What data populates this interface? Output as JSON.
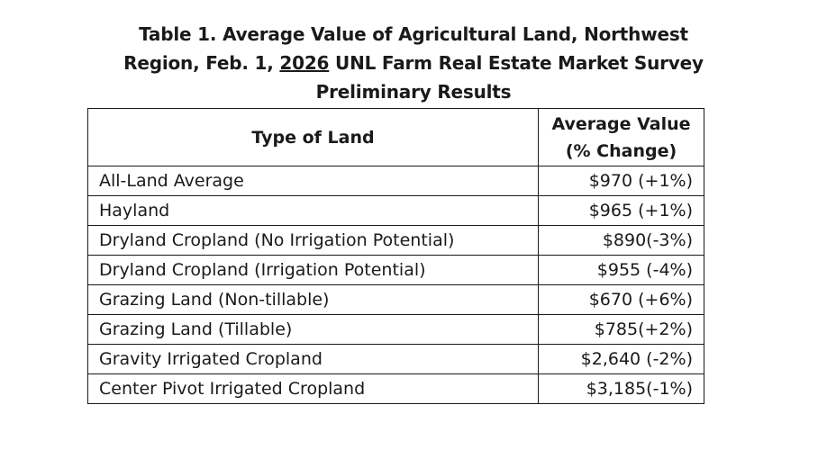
{
  "title": {
    "line1": "Table 1. Average Value of Agricultural Land, Northwest",
    "line2_pre": "Region, Feb. 1, ",
    "line2_year": "2026",
    "line2_post": " UNL Farm Real Estate Market Survey",
    "line3": "Preliminary Results"
  },
  "table": {
    "headers": {
      "type": "Type of Land",
      "value_line1": "Average Value",
      "value_line2": "(% Change)"
    },
    "rows": [
      {
        "type": "All-Land Average",
        "value": "$970 (+1%)"
      },
      {
        "type": "Hayland",
        "value": "$965 (+1%)"
      },
      {
        "type": "Dryland Cropland (No Irrigation Potential)",
        "value": "$890(-3%)"
      },
      {
        "type": "Dryland Cropland (Irrigation Potential)",
        "value": "$955 (-4%)"
      },
      {
        "type": "Grazing Land (Non-tillable)",
        "value": "$670 (+6%)"
      },
      {
        "type": "Grazing Land (Tillable)",
        "value": "$785(+2%)"
      },
      {
        "type": "Gravity Irrigated Cropland",
        "value": "$2,640 (-2%)"
      },
      {
        "type": "Center Pivot Irrigated Cropland",
        "value": "$3,185(-1%)"
      }
    ]
  }
}
